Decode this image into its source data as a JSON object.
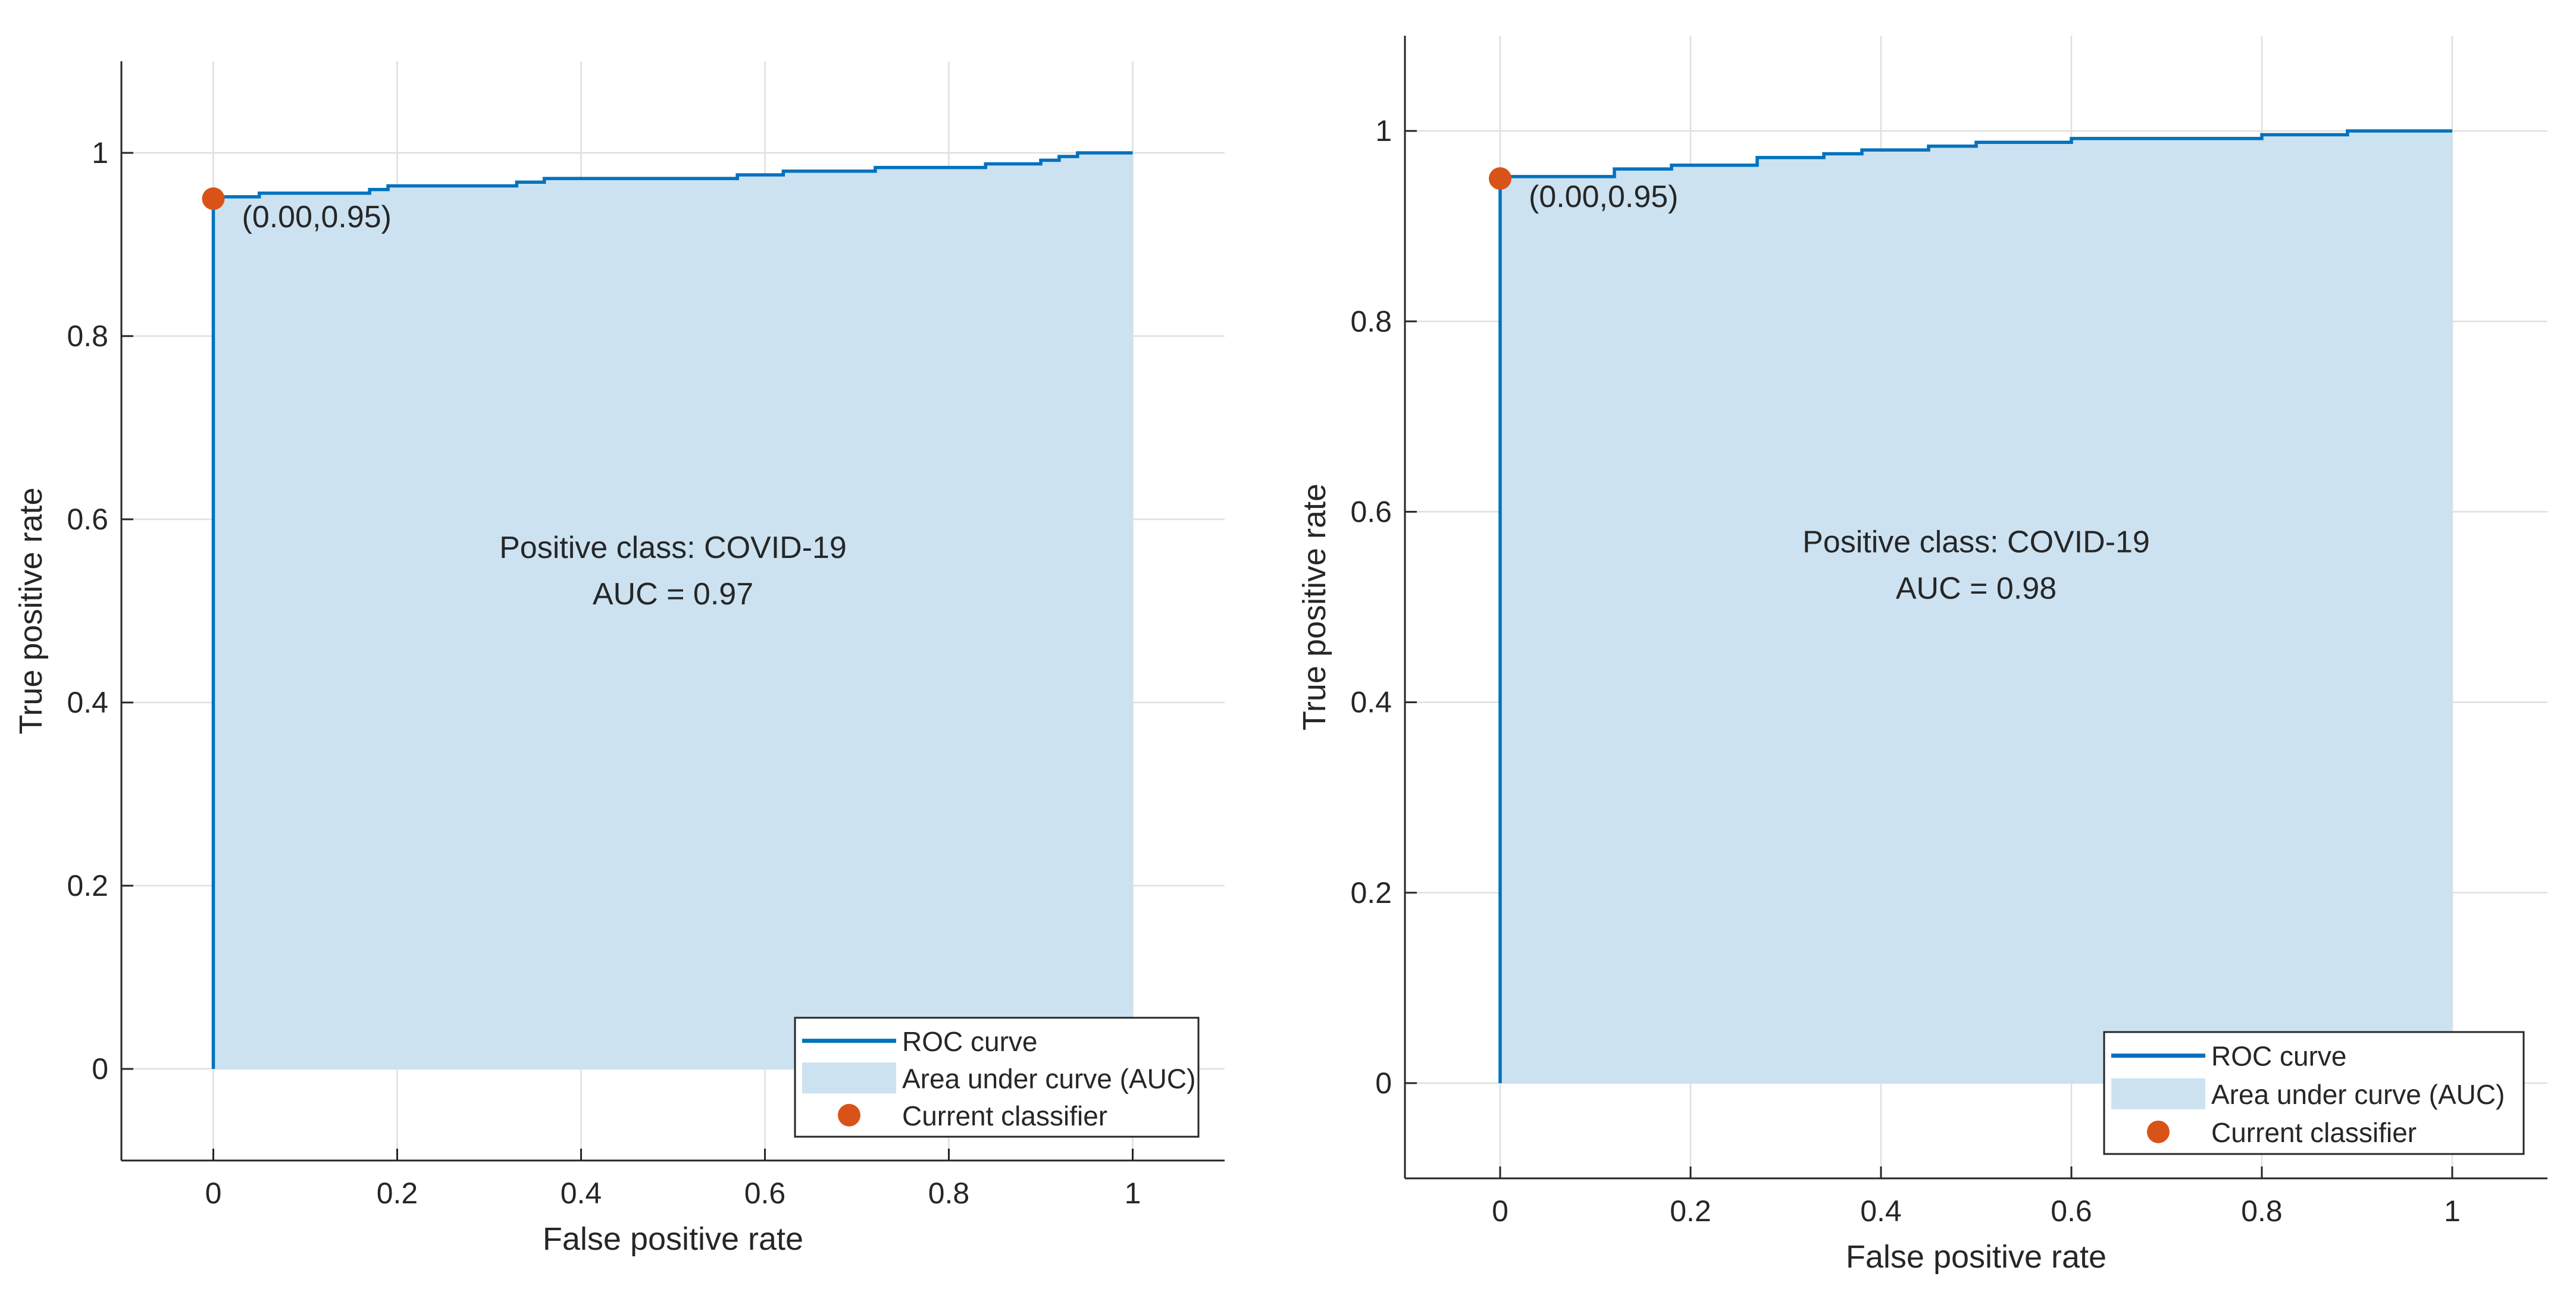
{
  "chart_data": [
    {
      "type": "line",
      "title": "",
      "xlabel": "False positive rate",
      "ylabel": "True positive rate",
      "xlim": [
        -0.1,
        1.1
      ],
      "ylim": [
        -0.1,
        1.1
      ],
      "xticks": [
        0,
        0.2,
        0.4,
        0.6,
        0.8,
        1
      ],
      "xtick_labels": [
        "0",
        "0.2",
        "0.4",
        "0.6",
        "0.8",
        "1"
      ],
      "yticks": [
        0,
        0.2,
        0.4,
        0.6,
        0.8,
        1
      ],
      "ytick_labels": [
        "0",
        "0.2",
        "0.4",
        "0.6",
        "0.8",
        "1"
      ],
      "grid": true,
      "series": [
        {
          "name": "ROC curve",
          "x": [
            0,
            0,
            0.05,
            0.05,
            0.17,
            0.17,
            0.19,
            0.19,
            0.33,
            0.33,
            0.36,
            0.36,
            0.57,
            0.57,
            0.62,
            0.62,
            0.72,
            0.72,
            0.84,
            0.84,
            0.9,
            0.9,
            0.92,
            0.92,
            0.94,
            0.94,
            1
          ],
          "y": [
            0,
            0.952,
            0.952,
            0.956,
            0.956,
            0.96,
            0.96,
            0.964,
            0.964,
            0.968,
            0.968,
            0.972,
            0.972,
            0.976,
            0.976,
            0.98,
            0.98,
            0.984,
            0.984,
            0.988,
            0.988,
            0.992,
            0.992,
            0.996,
            0.996,
            1.0,
            1.0
          ]
        }
      ],
      "area_label": "Area under curve (AUC)",
      "point": {
        "name": "Current classifier",
        "x": 0.0,
        "y": 0.95,
        "label": "(0.00,0.95)"
      },
      "annotation": [
        "Positive class: COVID-19",
        "AUC = 0.97"
      ],
      "legend_position": "bottom-right",
      "legend": [
        "ROC curve",
        "Area under curve (AUC)",
        "Current classifier"
      ],
      "colors": {
        "line": "#0072bd",
        "area": "#cce2f1",
        "point": "#d95319",
        "grid": "#dfdfdf",
        "axis": "#262626"
      }
    },
    {
      "type": "line",
      "title": "",
      "xlabel": "False positive rate",
      "ylabel": "True positive rate",
      "xlim": [
        -0.1,
        1.1
      ],
      "ylim": [
        -0.1,
        1.1
      ],
      "xticks": [
        0,
        0.2,
        0.4,
        0.6,
        0.8,
        1
      ],
      "xtick_labels": [
        "0",
        "0.2",
        "0.4",
        "0.6",
        "0.8",
        "1"
      ],
      "yticks": [
        0,
        0.2,
        0.4,
        0.6,
        0.8,
        1
      ],
      "ytick_labels": [
        "0",
        "0.2",
        "0.4",
        "0.6",
        "0.8",
        "1"
      ],
      "grid": true,
      "series": [
        {
          "name": "ROC curve",
          "x": [
            0,
            0,
            0.12,
            0.12,
            0.18,
            0.18,
            0.27,
            0.27,
            0.34,
            0.34,
            0.38,
            0.38,
            0.45,
            0.45,
            0.5,
            0.5,
            0.6,
            0.6,
            0.8,
            0.8,
            0.89,
            0.89,
            1
          ],
          "y": [
            0,
            0.952,
            0.952,
            0.96,
            0.96,
            0.964,
            0.964,
            0.972,
            0.972,
            0.976,
            0.976,
            0.98,
            0.98,
            0.984,
            0.984,
            0.988,
            0.988,
            0.992,
            0.992,
            0.996,
            0.996,
            1.0,
            1.0
          ]
        }
      ],
      "area_label": "Area under curve (AUC)",
      "point": {
        "name": "Current classifier",
        "x": 0.0,
        "y": 0.95,
        "label": "(0.00,0.95)"
      },
      "annotation": [
        "Positive class: COVID-19",
        "AUC = 0.98"
      ],
      "legend_position": "bottom-right",
      "legend": [
        "ROC curve",
        "Area under curve (AUC)",
        "Current classifier"
      ],
      "colors": {
        "line": "#0072bd",
        "area": "#cce2f1",
        "point": "#d95319",
        "grid": "#dfdfdf",
        "axis": "#262626"
      }
    }
  ]
}
